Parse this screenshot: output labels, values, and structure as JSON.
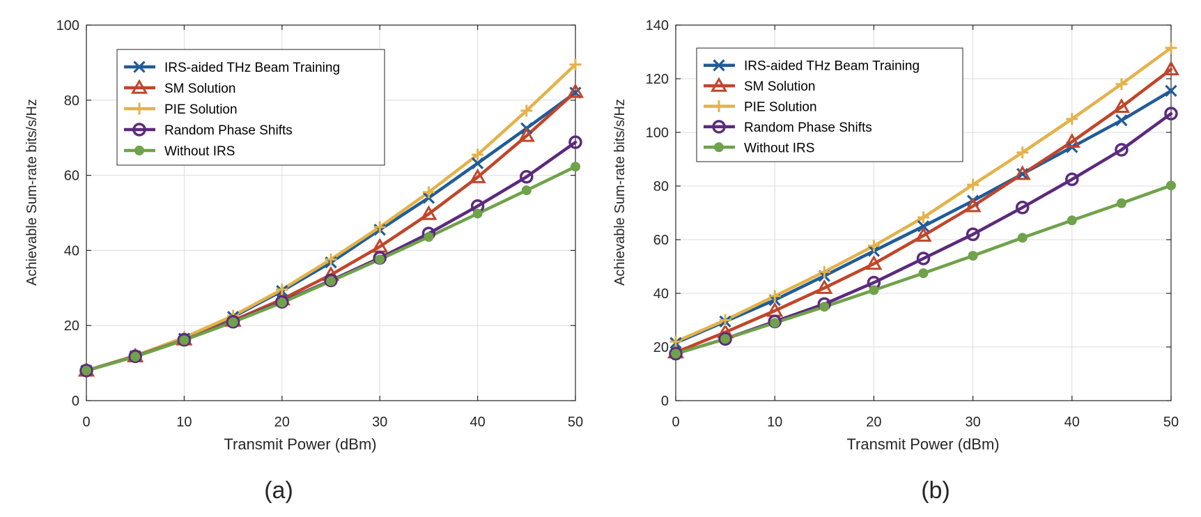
{
  "chart_data": [
    {
      "type": "line",
      "panel_label": "(a)",
      "xlabel": "Transmit Power (dBm)",
      "ylabel": "Achievable Sum-rate bits/s/Hz",
      "xlim": [
        0,
        50
      ],
      "ylim": [
        0,
        100
      ],
      "xticks": [
        0,
        10,
        20,
        30,
        40,
        50
      ],
      "yticks": [
        0,
        20,
        40,
        60,
        80,
        100
      ],
      "grid": true,
      "legend_position": "top-left",
      "x": [
        0,
        5,
        10,
        15,
        20,
        25,
        30,
        35,
        40,
        45,
        50
      ],
      "series": [
        {
          "name": "IRS-aided THz Beam Training",
          "color": "#1f5c99",
          "marker": "x",
          "values": [
            8,
            11.8,
            16.5,
            22.3,
            29.2,
            36.8,
            45.5,
            54,
            63.2,
            72.5,
            82
          ]
        },
        {
          "name": "SM Solution",
          "color": "#c0462a",
          "marker": "triangle",
          "values": [
            8,
            11.8,
            16.3,
            21.3,
            27,
            33.5,
            41,
            49.7,
            59.5,
            70.5,
            82.2
          ]
        },
        {
          "name": "PIE Solution",
          "color": "#e3b24a",
          "marker": "plus",
          "values": [
            8,
            12,
            16.8,
            22.6,
            29.6,
            37.6,
            46.2,
            55.5,
            65.5,
            77.2,
            89.5
          ]
        },
        {
          "name": "Random Phase Shifts",
          "color": "#5b2a7d",
          "marker": "circle",
          "values": [
            8,
            11.8,
            16.2,
            21,
            26.3,
            32,
            38,
            44.5,
            51.8,
            59.6,
            68.8
          ]
        },
        {
          "name": "Without IRS",
          "color": "#6fa24a",
          "marker": "dot",
          "values": [
            8,
            11.7,
            16.1,
            20.9,
            26.1,
            31.8,
            37.6,
            43.6,
            49.8,
            56,
            62.3
          ]
        }
      ]
    },
    {
      "type": "line",
      "panel_label": "(b)",
      "xlabel": "Transmit Power (dBm)",
      "ylabel": "Achievable Sum-rate bits/s/Hz",
      "xlim": [
        0,
        50
      ],
      "ylim": [
        0,
        140
      ],
      "xticks": [
        0,
        10,
        20,
        30,
        40,
        50
      ],
      "yticks": [
        0,
        20,
        40,
        60,
        80,
        100,
        120,
        140
      ],
      "grid": true,
      "legend_position": "top-left",
      "x": [
        0,
        5,
        10,
        15,
        20,
        25,
        30,
        35,
        40,
        45,
        50
      ],
      "series": [
        {
          "name": "IRS-aided THz Beam Training",
          "color": "#1f5c99",
          "marker": "x",
          "values": [
            21.5,
            29.5,
            37.5,
            46.5,
            55.8,
            65,
            74.5,
            84.5,
            94.5,
            104.5,
            115.5
          ]
        },
        {
          "name": "SM Solution",
          "color": "#c0462a",
          "marker": "triangle",
          "values": [
            18,
            25.5,
            33.5,
            42,
            51,
            61.5,
            72.5,
            84.5,
            96.5,
            109.5,
            123.5
          ]
        },
        {
          "name": "PIE Solution",
          "color": "#e3b24a",
          "marker": "plus",
          "values": [
            22,
            30,
            39,
            48,
            57.7,
            68.3,
            80.5,
            92.5,
            105,
            118,
            131.5
          ]
        },
        {
          "name": "Random Phase Shifts",
          "color": "#5b2a7d",
          "marker": "circle",
          "values": [
            17.5,
            23,
            29.5,
            36,
            44,
            53,
            62,
            72,
            82.5,
            93.5,
            107
          ]
        },
        {
          "name": "Without IRS",
          "color": "#6fa24a",
          "marker": "dot",
          "values": [
            17.5,
            23,
            29,
            35,
            41.2,
            47.5,
            54,
            60.7,
            67.2,
            73.6,
            80.2
          ]
        }
      ]
    }
  ]
}
